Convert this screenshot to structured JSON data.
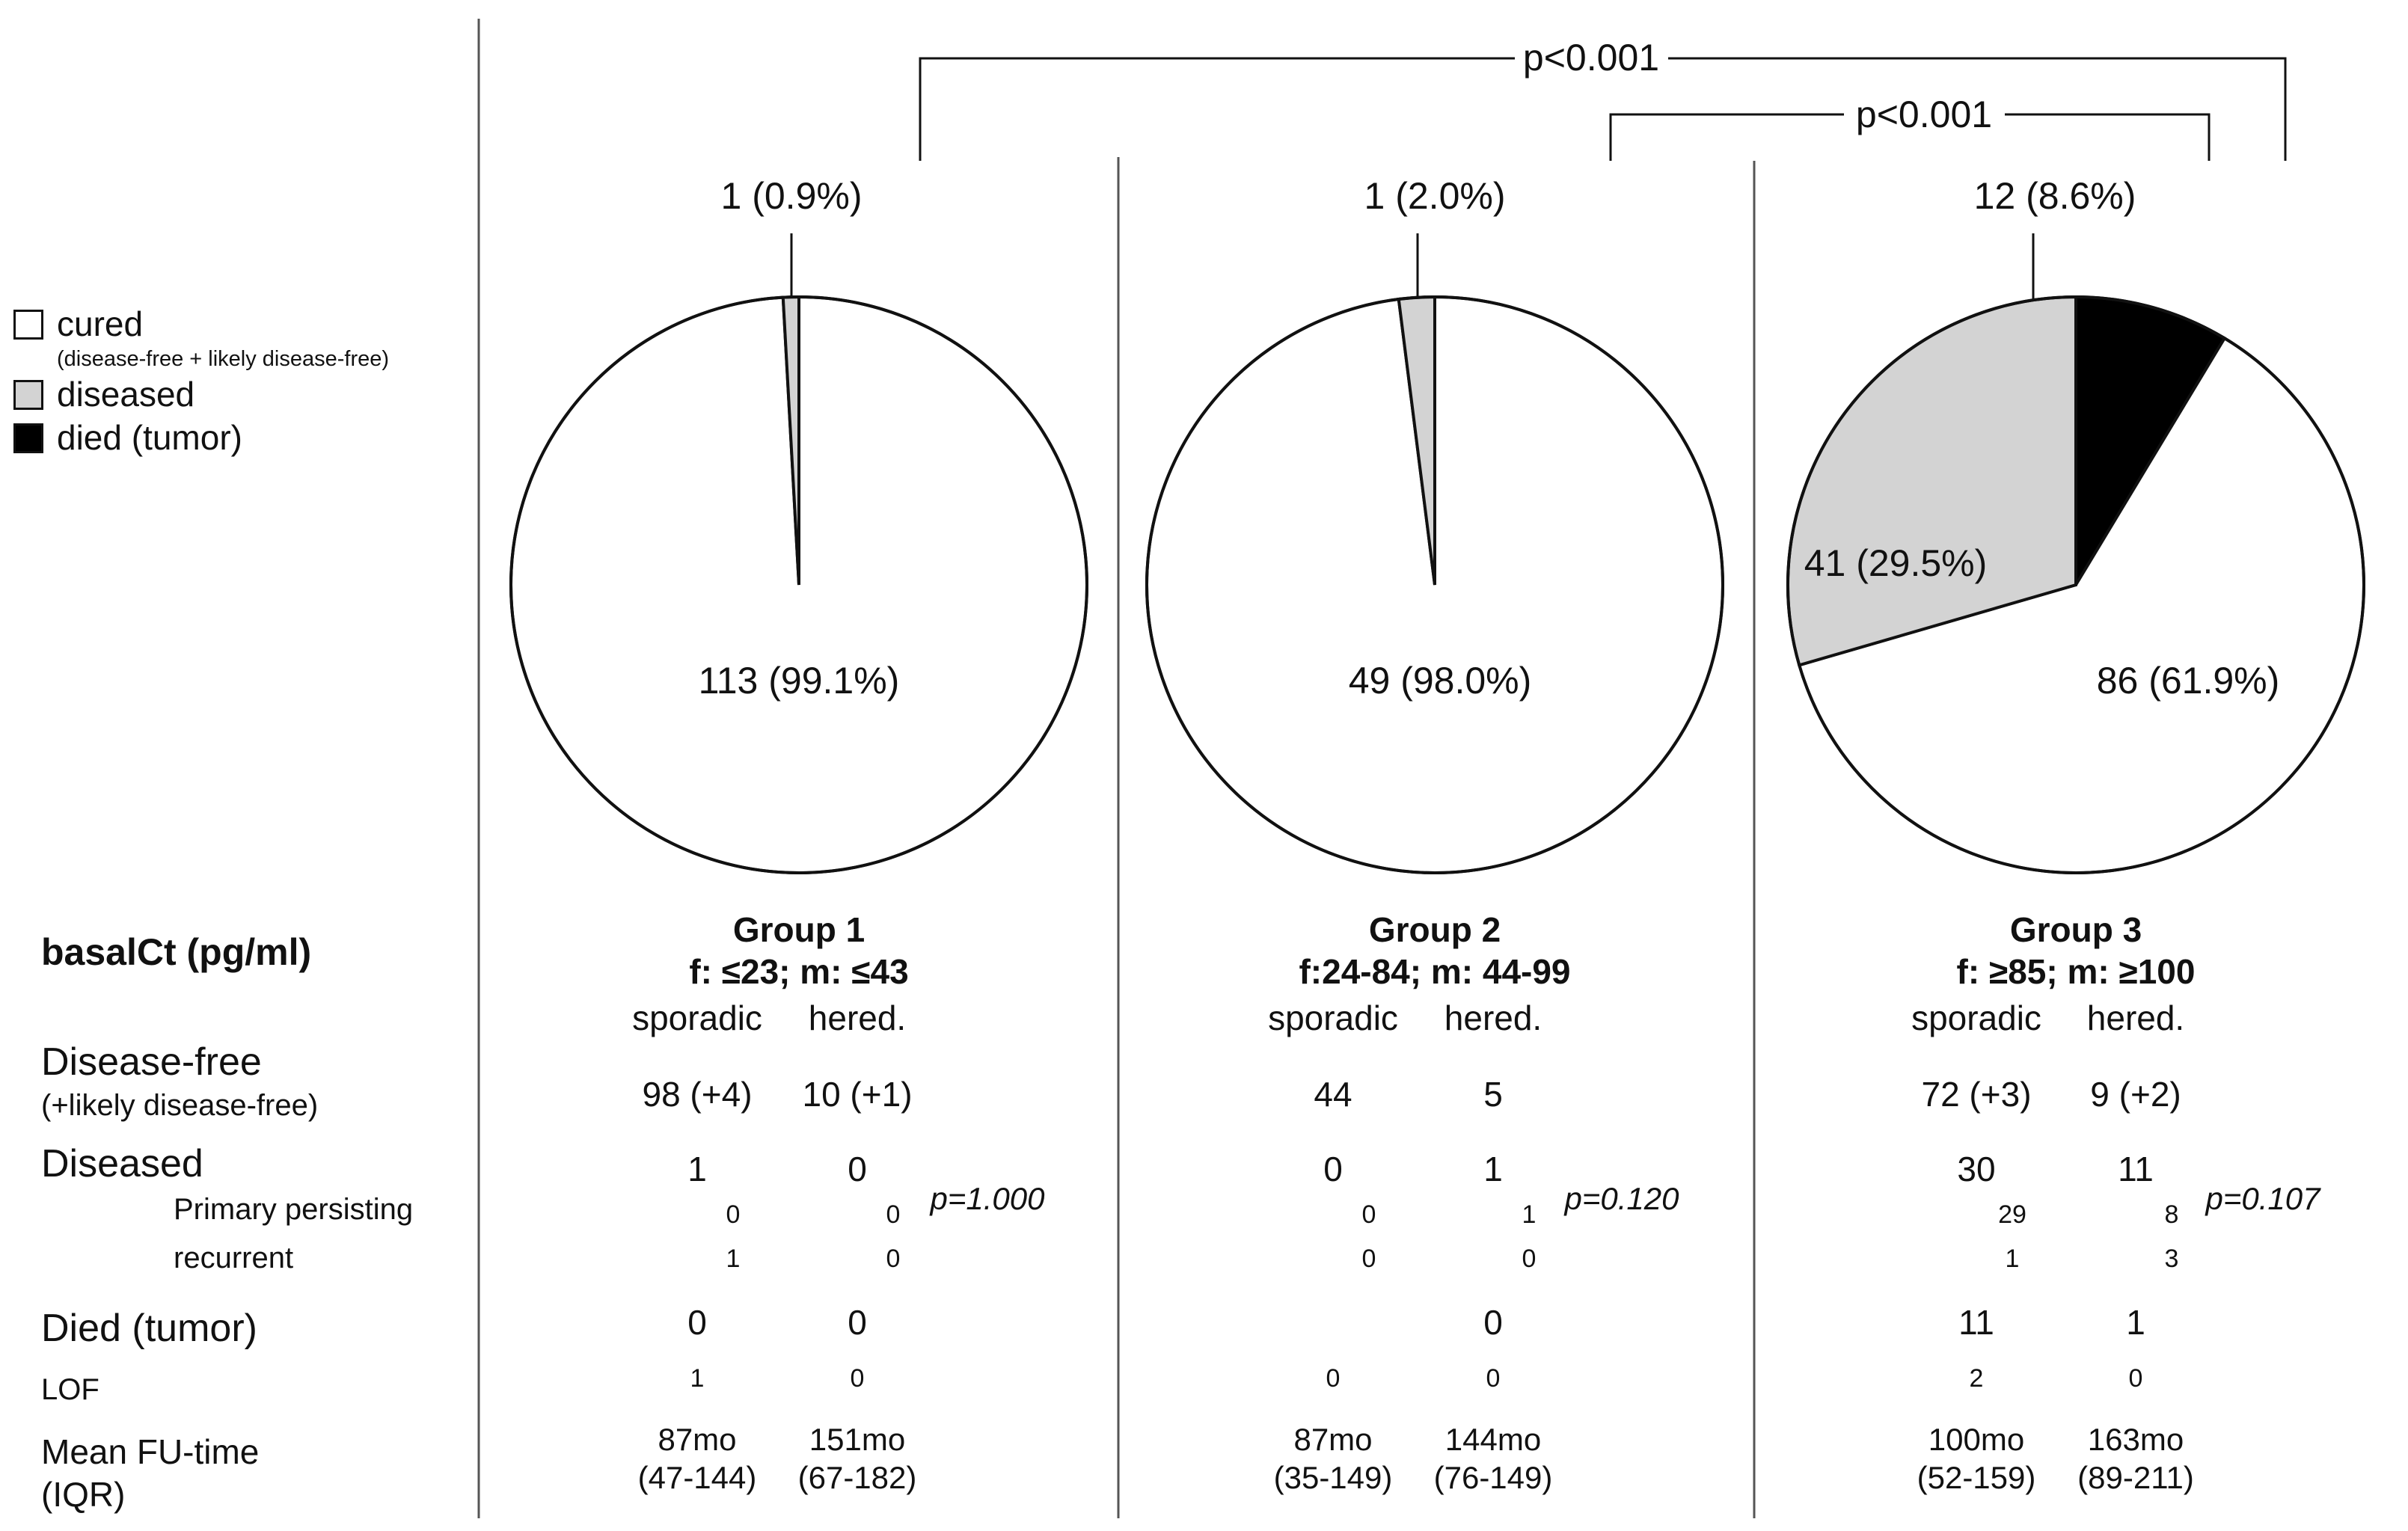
{
  "legend": {
    "items": [
      {
        "label": "cured",
        "sub": "(disease-free + likely disease-free)",
        "color": "#ffffff"
      },
      {
        "label": "diseased",
        "color": "#d3d3d3"
      },
      {
        "label": "died (tumor)",
        "color": "#000000"
      }
    ]
  },
  "comparisons": [
    {
      "label": "p<0.001",
      "between": [
        "Group 1",
        "Group 3"
      ]
    },
    {
      "label": "p<0.001",
      "between": [
        "Group 2",
        "Group 3"
      ]
    }
  ],
  "row_labels": {
    "basalct": "basalCt (pg/ml)",
    "disease_free": "Disease-free",
    "disease_free_sub": "(+likely disease-free)",
    "diseased": "Diseased",
    "primary_persisting": "Primary persisting",
    "recurrent": "recurrent",
    "died": "Died (tumor)",
    "lof": "LOF",
    "fu_time": "Mean FU-time",
    "fu_iqr": "(IQR)"
  },
  "chart_data": [
    {
      "type": "pie",
      "title": "Group 1",
      "subtitle": "f: ≤23; m: ≤43",
      "slices": [
        {
          "name": "cured",
          "value": 113,
          "label": "113 (99.1%)",
          "color": "#ffffff"
        },
        {
          "name": "diseased",
          "value": 1,
          "label": "1 (0.9%)",
          "color": "#d3d3d3"
        },
        {
          "name": "died (tumor)",
          "value": 0,
          "label": "",
          "color": "#000000"
        }
      ],
      "table": {
        "sporadic_label": "sporadic",
        "hered_label": "hered.",
        "disease_free": [
          "98 (+4)",
          "10 (+1)"
        ],
        "diseased": [
          "1",
          "0"
        ],
        "primary_persisting": [
          "0",
          "0"
        ],
        "recurrent": [
          "1",
          "0"
        ],
        "died": [
          "0",
          "0"
        ],
        "lof": [
          "1",
          "0"
        ],
        "fu_mean": [
          "87mo",
          "151mo"
        ],
        "fu_iqr": [
          "(47-144)",
          "(67-182)"
        ],
        "p": "p=1.000"
      }
    },
    {
      "type": "pie",
      "title": "Group 2",
      "subtitle": "f:24-84; m: 44-99",
      "slices": [
        {
          "name": "cured",
          "value": 49,
          "label": "49 (98.0%)",
          "color": "#ffffff"
        },
        {
          "name": "diseased",
          "value": 1,
          "label": "1 (2.0%)",
          "color": "#d3d3d3"
        },
        {
          "name": "died (tumor)",
          "value": 0,
          "label": "",
          "color": "#000000"
        }
      ],
      "table": {
        "sporadic_label": "sporadic",
        "hered_label": "hered.",
        "disease_free": [
          "44",
          "5"
        ],
        "diseased": [
          "0",
          "1"
        ],
        "primary_persisting": [
          "0",
          "1"
        ],
        "recurrent": [
          "0",
          "0"
        ],
        "died": [
          "",
          "0"
        ],
        "lof": [
          "0",
          "0"
        ],
        "fu_mean": [
          "87mo",
          "144mo"
        ],
        "fu_iqr": [
          "(35-149)",
          "(76-149)"
        ],
        "p": "p=0.120"
      }
    },
    {
      "type": "pie",
      "title": "Group 3",
      "subtitle": "f: ≥85; m: ≥100",
      "slices": [
        {
          "name": "cured",
          "value": 86,
          "label": "86 (61.9%)",
          "color": "#ffffff"
        },
        {
          "name": "diseased",
          "value": 41,
          "label": "41 (29.5%)",
          "color": "#d3d3d3"
        },
        {
          "name": "died (tumor)",
          "value": 12,
          "label": "12 (8.6%)",
          "color": "#000000"
        }
      ],
      "table": {
        "sporadic_label": "sporadic",
        "hered_label": "hered.",
        "disease_free": [
          "72 (+3)",
          "9 (+2)"
        ],
        "diseased": [
          "30",
          "11"
        ],
        "primary_persisting": [
          "29",
          "8"
        ],
        "recurrent": [
          "1",
          "3"
        ],
        "died": [
          "11",
          "1"
        ],
        "lof": [
          "2",
          "0"
        ],
        "fu_mean": [
          "100mo",
          "163mo"
        ],
        "fu_iqr": [
          "(52-159)",
          "(89-211)"
        ],
        "p": "p=0.107"
      }
    }
  ]
}
